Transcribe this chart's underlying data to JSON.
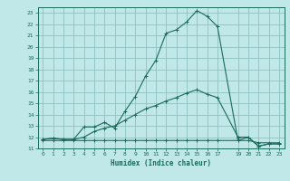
{
  "xlabel": "Humidex (Indice chaleur)",
  "ylabel": "",
  "background_color": "#c0e8e8",
  "grid_color": "#90c0c0",
  "line_color": "#1a6b5a",
  "x_ticks": [
    0,
    1,
    2,
    3,
    4,
    5,
    6,
    7,
    8,
    9,
    10,
    11,
    12,
    13,
    14,
    15,
    16,
    17,
    19,
    20,
    21,
    22,
    23
  ],
  "ylim": [
    11,
    23.5
  ],
  "xlim": [
    -0.5,
    23.5
  ],
  "line1_x": [
    0,
    1,
    2,
    3,
    4,
    5,
    6,
    7,
    8,
    9,
    10,
    11,
    12,
    13,
    14,
    15,
    16,
    17,
    19,
    20,
    21,
    22,
    23
  ],
  "line1_y": [
    11.7,
    11.7,
    11.7,
    11.7,
    11.7,
    11.7,
    11.7,
    11.7,
    11.7,
    11.7,
    11.7,
    11.7,
    11.7,
    11.7,
    11.7,
    11.7,
    11.7,
    11.7,
    11.7,
    11.7,
    11.5,
    11.5,
    11.5
  ],
  "line2_x": [
    0,
    1,
    2,
    3,
    4,
    5,
    6,
    7,
    8,
    9,
    10,
    11,
    12,
    13,
    14,
    15,
    16,
    17,
    19,
    20,
    21,
    22,
    23
  ],
  "line2_y": [
    11.8,
    11.9,
    11.8,
    11.8,
    12.9,
    12.9,
    13.3,
    12.8,
    14.3,
    15.6,
    17.4,
    18.8,
    21.2,
    21.5,
    22.2,
    23.2,
    22.7,
    21.8,
    11.7,
    12.0,
    11.2,
    11.4,
    11.4
  ],
  "line3_x": [
    0,
    1,
    2,
    3,
    4,
    5,
    6,
    7,
    8,
    9,
    10,
    11,
    12,
    13,
    14,
    15,
    16,
    17,
    19,
    20,
    21,
    22,
    23
  ],
  "line3_y": [
    11.8,
    11.9,
    11.8,
    11.8,
    12.0,
    12.5,
    12.8,
    13.0,
    13.5,
    14.0,
    14.5,
    14.8,
    15.2,
    15.5,
    15.9,
    16.2,
    15.8,
    15.5,
    12.0,
    12.0,
    11.2,
    11.4,
    11.4
  ],
  "yticks": [
    11,
    12,
    13,
    14,
    15,
    16,
    17,
    18,
    19,
    20,
    21,
    22,
    23
  ]
}
